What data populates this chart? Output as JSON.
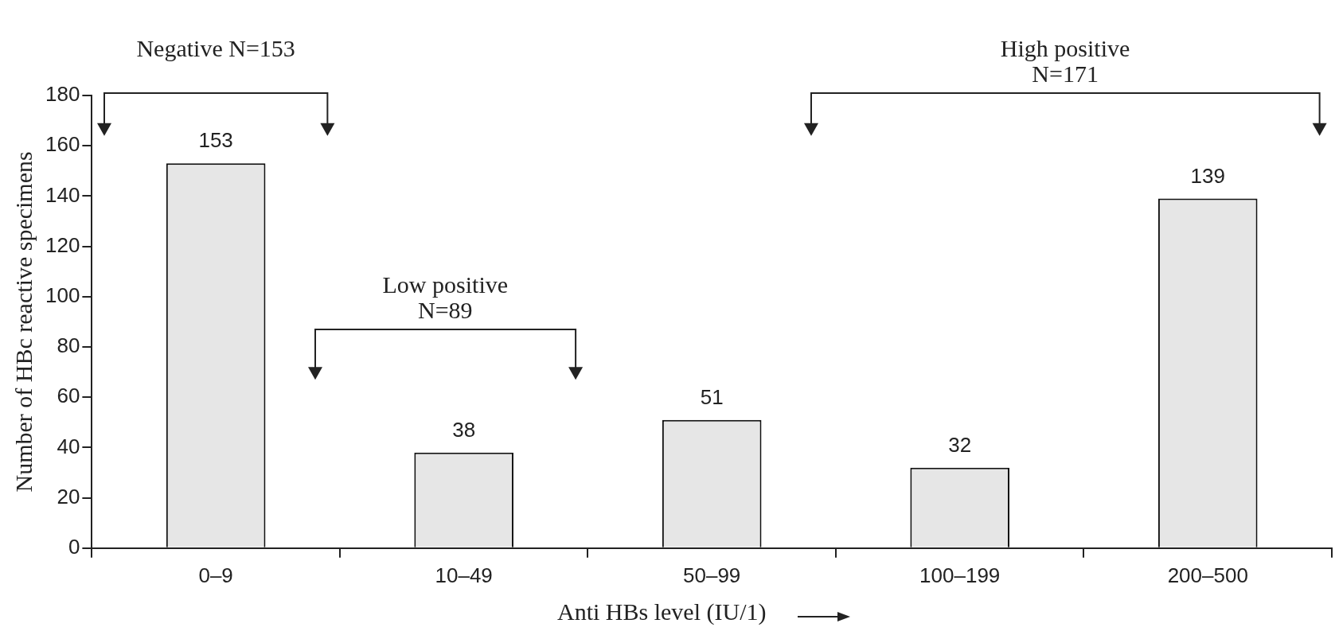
{
  "chart_data": {
    "type": "bar",
    "xlabel": "Anti HBs level (IU/1)",
    "ylabel": "Number of HBc reactive specimens",
    "categories": [
      "0–9",
      "10–49",
      "50–99",
      "100–199",
      "200–500"
    ],
    "values": [
      153,
      38,
      51,
      32,
      139
    ],
    "color": "#e6e6e6",
    "data_labels": true,
    "ylim": [
      0,
      180
    ],
    "yticks": [
      0,
      20,
      40,
      60,
      80,
      100,
      120,
      140,
      160,
      180
    ],
    "grid": false,
    "legend": false,
    "annotations": [
      "Negative N=153",
      "Low positive N=89",
      "High positive N=171"
    ]
  }
}
